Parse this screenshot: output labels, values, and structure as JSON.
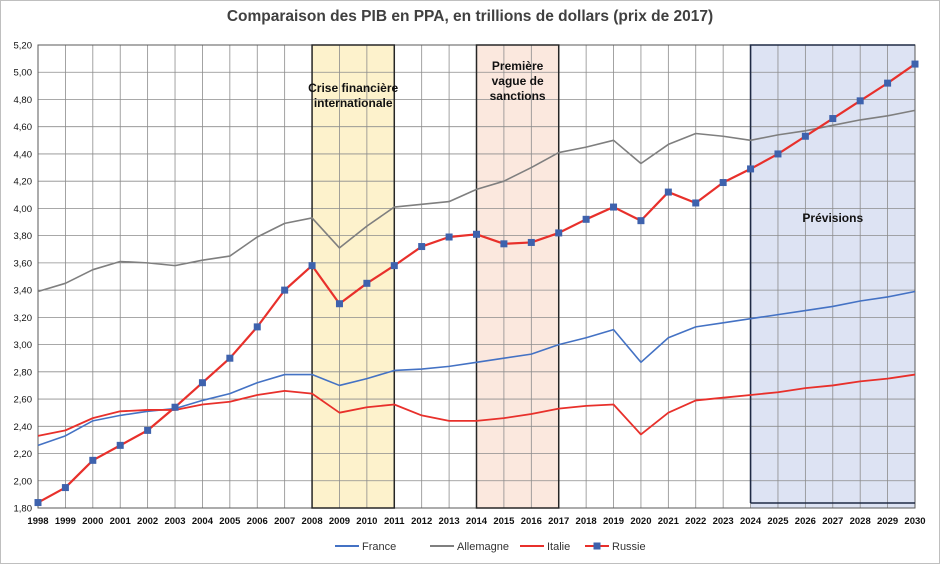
{
  "chart_data": {
    "type": "line",
    "title": "Comparaison des PIB en PPA, en trillions de dollars (prix de 2017)",
    "xlabel": "",
    "ylabel": "",
    "x": [
      1998,
      1999,
      2000,
      2001,
      2002,
      2003,
      2004,
      2005,
      2006,
      2007,
      2008,
      2009,
      2010,
      2011,
      2012,
      2013,
      2014,
      2015,
      2016,
      2017,
      2018,
      2019,
      2020,
      2021,
      2022,
      2023,
      2024,
      2025,
      2026,
      2027,
      2028,
      2029,
      2030
    ],
    "ylim": [
      1.8,
      5.2
    ],
    "y_ticks": [
      "1,80",
      "2,00",
      "2,20",
      "2,40",
      "2,60",
      "2,80",
      "3,00",
      "3,20",
      "3,40",
      "3,60",
      "3,80",
      "4,00",
      "4,20",
      "4,40",
      "4,60",
      "4,80",
      "5,00",
      "5,20"
    ],
    "grid": true,
    "legend_position": "bottom",
    "series": [
      {
        "name": "France",
        "color": "#4472c4",
        "marker": "none",
        "values": [
          2.26,
          2.33,
          2.44,
          2.48,
          2.51,
          2.53,
          2.59,
          2.64,
          2.72,
          2.78,
          2.78,
          2.7,
          2.75,
          2.81,
          2.82,
          2.84,
          2.87,
          2.9,
          2.93,
          3.0,
          3.05,
          3.11,
          2.87,
          3.05,
          3.13,
          3.16,
          3.19,
          3.22,
          3.25,
          3.28,
          3.32,
          3.35,
          3.39
        ]
      },
      {
        "name": "Allemagne",
        "color": "#7f7f7f",
        "marker": "none",
        "values": [
          3.39,
          3.45,
          3.55,
          3.61,
          3.6,
          3.58,
          3.62,
          3.65,
          3.79,
          3.89,
          3.93,
          3.71,
          3.87,
          4.01,
          4.03,
          4.05,
          4.14,
          4.2,
          4.3,
          4.41,
          4.45,
          4.5,
          4.33,
          4.47,
          4.55,
          4.53,
          4.5,
          4.54,
          4.57,
          4.61,
          4.65,
          4.68,
          4.72
        ]
      },
      {
        "name": "Italie",
        "color": "#e8302b",
        "marker": "none",
        "values": [
          2.33,
          2.37,
          2.46,
          2.51,
          2.52,
          2.52,
          2.56,
          2.58,
          2.63,
          2.66,
          2.64,
          2.5,
          2.54,
          2.56,
          2.48,
          2.44,
          2.44,
          2.46,
          2.49,
          2.53,
          2.55,
          2.56,
          2.34,
          2.5,
          2.59,
          2.61,
          2.63,
          2.65,
          2.68,
          2.7,
          2.73,
          2.75,
          2.78
        ]
      },
      {
        "name": "Russie",
        "color": "#e8302b",
        "marker": "square",
        "marker_color": "#3e62ad",
        "values": [
          1.84,
          1.95,
          2.15,
          2.26,
          2.37,
          2.54,
          2.72,
          2.9,
          3.13,
          3.4,
          3.58,
          3.3,
          3.45,
          3.58,
          3.72,
          3.79,
          3.81,
          3.74,
          3.75,
          3.82,
          3.92,
          4.01,
          3.91,
          4.12,
          4.04,
          4.19,
          4.29,
          4.4,
          4.53,
          4.66,
          4.79,
          4.92,
          5.06
        ]
      }
    ],
    "annotations": [
      {
        "name": "crisis-band",
        "label_lines": [
          "Crise financière",
          "internationale"
        ],
        "x_range": [
          2008,
          2011
        ],
        "fill": "#fdf2cc"
      },
      {
        "name": "sanctions-band",
        "label_lines": [
          "Première",
          "vague de",
          "sanctions"
        ],
        "x_range": [
          2014,
          2017
        ],
        "fill": "#fbe8de"
      },
      {
        "name": "forecast-band",
        "label_lines": [
          "Prévisions"
        ],
        "x_range": [
          2024,
          2030
        ],
        "fill": "#dde3f3"
      }
    ]
  }
}
